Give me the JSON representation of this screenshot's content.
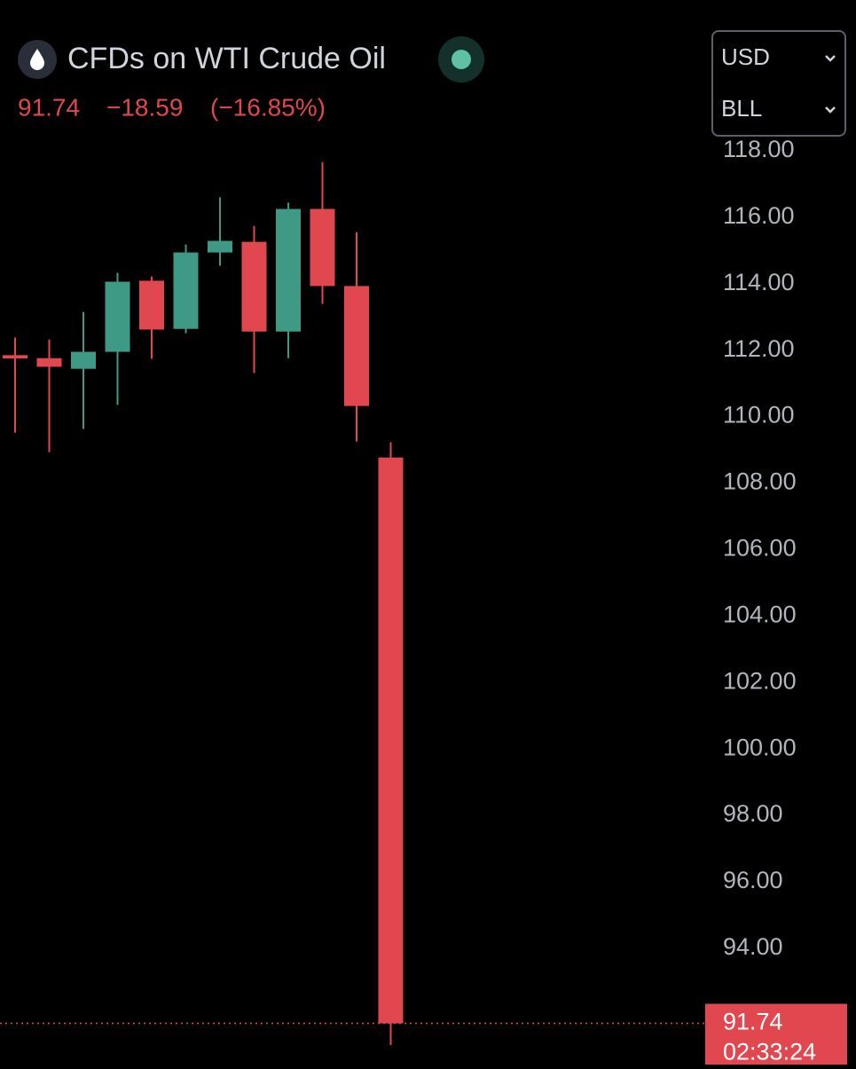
{
  "chart_data": {
    "type": "candlestick",
    "title": "CFDs on WTI Crude Oil",
    "change": "−18.59",
    "change_percent": "(−16.85%)",
    "currency": "USD",
    "unit": "BLL",
    "countdown": "02:33:24",
    "categories": [
      null,
      null,
      null,
      null,
      null,
      null,
      null,
      null,
      null,
      null,
      null,
      null
    ],
    "series": [
      {
        "open": [
          111.85,
          111.76,
          111.44,
          111.95,
          114.09,
          112.64,
          114.94,
          115.26,
          112.56,
          116.25,
          113.93,
          108.77
        ],
        "high": [
          112.38,
          112.32,
          113.15,
          114.33,
          114.22,
          115.18,
          116.6,
          115.74,
          116.44,
          117.66,
          115.55,
          109.23
        ],
        "low": [
          109.52,
          108.93,
          109.63,
          110.35,
          111.74,
          112.51,
          114.54,
          111.31,
          111.76,
          113.39,
          109.25,
          91.09
        ],
        "close": [
          111.75,
          111.5,
          111.95,
          114.06,
          112.62,
          114.94,
          115.29,
          112.56,
          116.25,
          113.93,
          110.32,
          91.74
        ]
      }
    ],
    "up_color": "#3f9a85",
    "down_color": "#e0474f",
    "ylim": [
      90.5,
      118.4
    ],
    "yticks": [
      {
        "value": 94,
        "label": "94.00"
      },
      {
        "value": 96,
        "label": "96.00"
      },
      {
        "value": 98,
        "label": "98.00"
      },
      {
        "value": 100,
        "label": "100.00"
      },
      {
        "value": 102,
        "label": "102.00"
      },
      {
        "value": 104,
        "label": "104.00"
      },
      {
        "value": 106,
        "label": "106.00"
      },
      {
        "value": 108,
        "label": "108.00"
      },
      {
        "value": 110,
        "label": "110.00"
      },
      {
        "value": 112,
        "label": "112.00"
      },
      {
        "value": 114,
        "label": "114.00"
      },
      {
        "value": 116,
        "label": "116.00"
      },
      {
        "value": 118,
        "label": "118.00"
      }
    ],
    "grid": false
  }
}
